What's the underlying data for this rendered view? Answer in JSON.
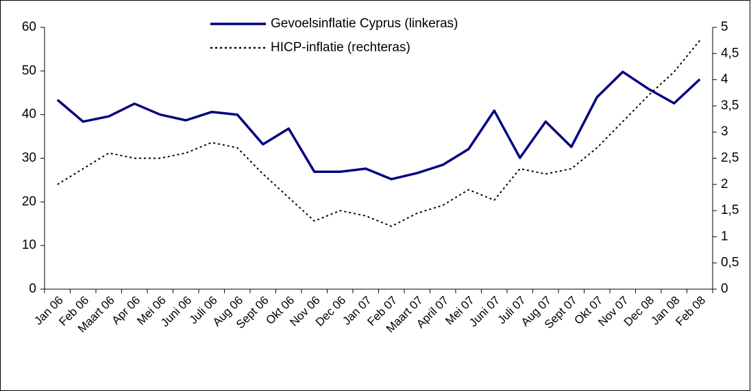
{
  "chart_data": {
    "type": "line",
    "categories": [
      "Jan 06",
      "Feb 06",
      "Maart 06",
      "Apr 06",
      "Mei 06",
      "Juni 06",
      "Juli 06",
      "Aug 06",
      "Sept 06",
      "Okt 06",
      "Nov 06",
      "Dec 06",
      "Jan 07",
      "Feb 07",
      "Maart 07",
      "April 07",
      "Mei 07",
      "Juni 07",
      "Juli 07",
      "Aug 07",
      "Sept 07",
      "Okt 07",
      "Nov 07",
      "Dec 08",
      "Jan 08",
      "Feb 08"
    ],
    "series": [
      {
        "name": "Gevoelsinflatie Cyprus (linkeras)",
        "color": "#000080",
        "axis": "y",
        "values": [
          43.4,
          38.4,
          39.6,
          42.5,
          40,
          38.7,
          40.6,
          40,
          33.2,
          36.8,
          26.9,
          26.9,
          27.6,
          25.2,
          26.6,
          28.5,
          32.1,
          40.9,
          30.1,
          38.4,
          32.6,
          44,
          49.8,
          45.9,
          42.6,
          48.1
        ]
      },
      {
        "name": "HICP-inflatie (rechteras)",
        "color": "#000000",
        "axis": "y2",
        "values": [
          2.0,
          2.3,
          2.6,
          2.5,
          2.5,
          2.6,
          2.8,
          2.7,
          2.2,
          1.75,
          1.3,
          1.5,
          1.4,
          1.2,
          1.45,
          1.6,
          1.9,
          1.7,
          2.3,
          2.2,
          2.3,
          2.7,
          3.2,
          3.7,
          4.15,
          4.75
        ]
      }
    ],
    "ylim": [
      0,
      60
    ],
    "yticks": [
      0,
      10,
      20,
      30,
      40,
      50,
      60
    ],
    "y2lim": [
      0,
      5
    ],
    "y2ticks": [
      0,
      {
        "value": 0.5,
        "label": "0,5"
      },
      1,
      {
        "value": 1.5,
        "label": "1,5"
      },
      2,
      {
        "value": 2.5,
        "label": "2,5"
      },
      3,
      {
        "value": 3.5,
        "label": "3,5"
      },
      4,
      {
        "value": 4.5,
        "label": "4,5"
      },
      5
    ],
    "legend": "top"
  }
}
